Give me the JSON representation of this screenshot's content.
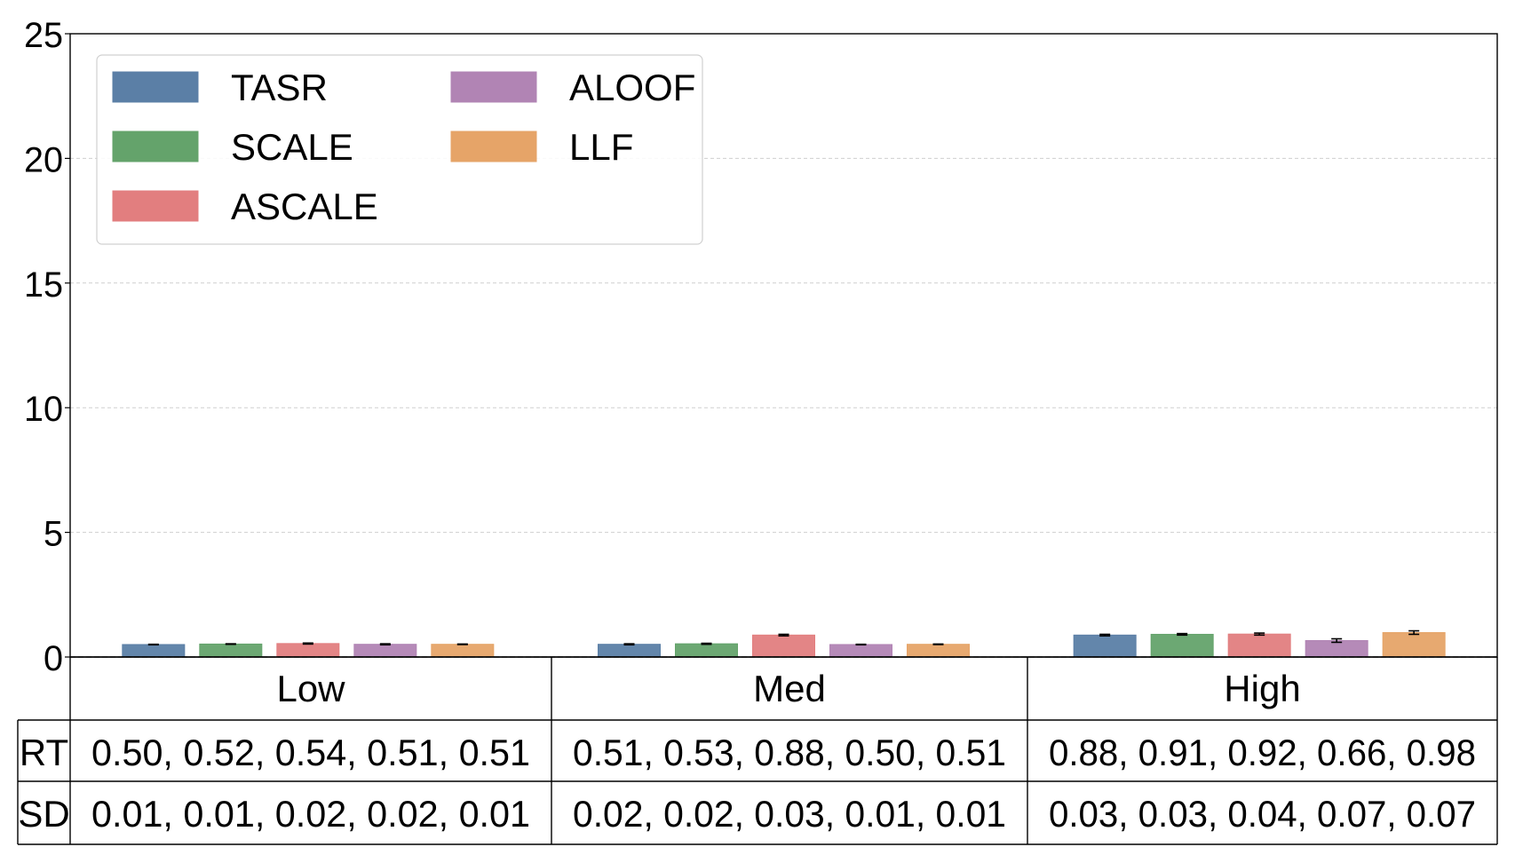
{
  "chart_data": {
    "type": "bar",
    "categories": [
      "Low",
      "Med",
      "High"
    ],
    "series": [
      {
        "name": "TASR",
        "color": "#5b7fa6",
        "values": [
          0.5,
          0.51,
          0.88
        ],
        "errors": [
          0.01,
          0.02,
          0.03
        ]
      },
      {
        "name": "SCALE",
        "color": "#64a36b",
        "values": [
          0.52,
          0.53,
          0.91
        ],
        "errors": [
          0.01,
          0.02,
          0.03
        ]
      },
      {
        "name": "ASCALE",
        "color": "#e27e7f",
        "values": [
          0.54,
          0.88,
          0.92
        ],
        "errors": [
          0.02,
          0.03,
          0.04
        ]
      },
      {
        "name": "ALOOF",
        "color": "#b184b4",
        "values": [
          0.51,
          0.5,
          0.66
        ],
        "errors": [
          0.02,
          0.01,
          0.07
        ]
      },
      {
        "name": "LLF",
        "color": "#e6a468",
        "values": [
          0.51,
          0.51,
          0.98
        ],
        "errors": [
          0.01,
          0.01,
          0.07
        ]
      }
    ],
    "ylim": [
      0,
      25
    ],
    "yticks": [
      "0",
      "5",
      "10",
      "15",
      "20",
      "25"
    ],
    "ytick_values": [
      0,
      5,
      10,
      15,
      20,
      25
    ],
    "grid": true,
    "legend_position": "top-left",
    "table": {
      "row_labels": [
        "RT",
        "SD"
      ],
      "rows": [
        [
          "0.50, 0.52, 0.54, 0.51, 0.51",
          "0.51, 0.53, 0.88, 0.50, 0.51",
          "0.88, 0.91, 0.92, 0.66, 0.98"
        ],
        [
          "0.01, 0.01, 0.02, 0.02, 0.01",
          "0.02, 0.02, 0.03, 0.01, 0.01",
          "0.03, 0.03, 0.04, 0.07, 0.07"
        ]
      ]
    }
  }
}
